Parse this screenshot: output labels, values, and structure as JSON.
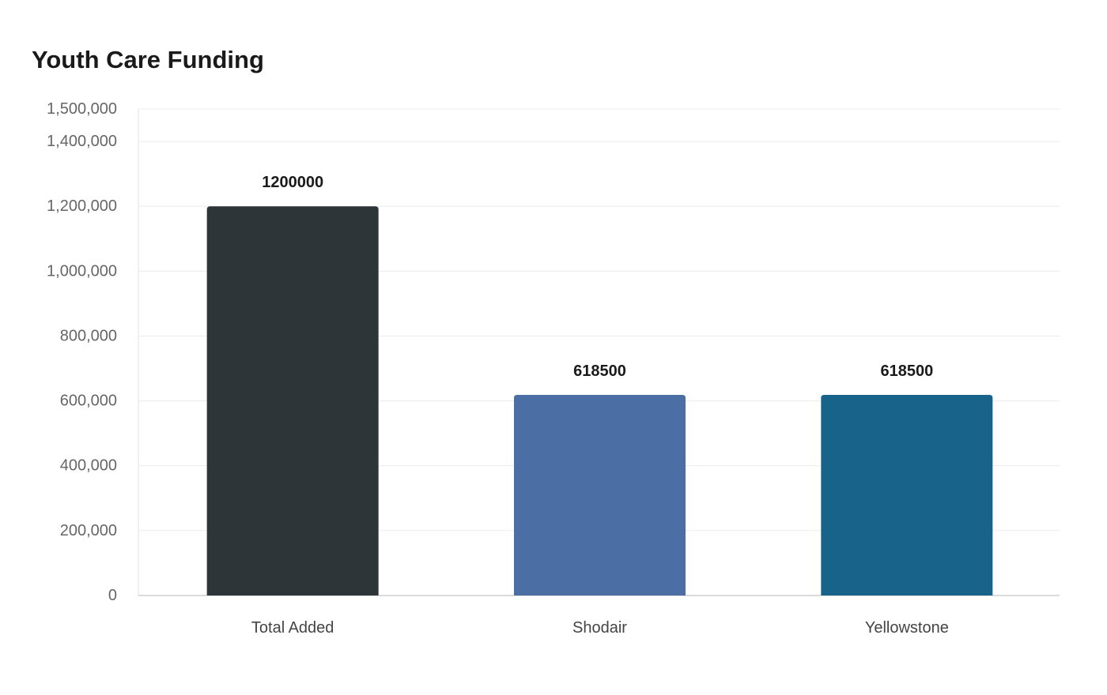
{
  "chart_data": {
    "type": "bar",
    "title": "Youth Care Funding",
    "xlabel": "",
    "ylabel": "",
    "categories": [
      "Total Added",
      "Shodair",
      "Yellowstone"
    ],
    "values": [
      1200000,
      618500,
      618500
    ],
    "value_labels": [
      "1200000",
      "618500",
      "618500"
    ],
    "colors": [
      "#2e3538",
      "#4b6fa5",
      "#186389"
    ],
    "ylim": [
      0,
      1500000
    ],
    "yticks": [
      0,
      200000,
      400000,
      600000,
      800000,
      1000000,
      1200000,
      1400000,
      1500000
    ],
    "ytick_labels": [
      "0",
      "200,000",
      "400,000",
      "600,000",
      "800,000",
      "1,000,000",
      "1,200,000",
      "1,400,000",
      "1,500,000"
    ],
    "grid": true,
    "legend": "none"
  }
}
